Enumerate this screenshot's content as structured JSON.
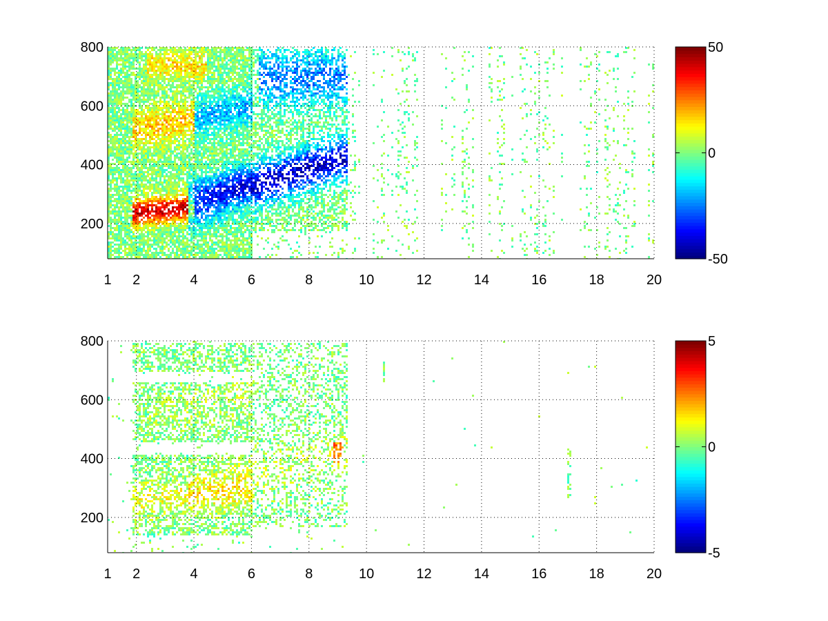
{
  "chart_data": [
    {
      "type": "heatmap",
      "title": "",
      "xlabel": "",
      "ylabel": "",
      "x_ticks": [
        1,
        2,
        4,
        6,
        8,
        10,
        12,
        14,
        16,
        18,
        20
      ],
      "y_ticks": [
        200,
        400,
        600,
        800
      ],
      "xlim": [
        1,
        20
      ],
      "ylim": [
        80,
        800
      ],
      "grid": true,
      "grid_style": "dotted",
      "colormap": "jet",
      "clim": [
        -50,
        50
      ],
      "colorbar_ticks": [
        -50,
        0,
        50
      ],
      "features": [
        {
          "x": [
            1.8,
            5.9
          ],
          "y_start": 225,
          "y_end": 290,
          "value": 40,
          "label": "lower band"
        },
        {
          "x": [
            3.8,
            9.2
          ],
          "y_start": 260,
          "y_end": 420,
          "value": -40,
          "label": "rising band"
        },
        {
          "x": [
            1.8,
            5.9
          ],
          "y_start": 480,
          "y_end": 600,
          "value": 20,
          "label": "middle band"
        },
        {
          "x": [
            2.5,
            4.2
          ],
          "y_start": 710,
          "y_end": 790,
          "value": 15,
          "label": "upper band"
        },
        {
          "x": [
            6.2,
            9.2
          ],
          "y_start": 420,
          "y_end": 740,
          "value": -25,
          "label": "scattered blue"
        }
      ]
    },
    {
      "type": "heatmap",
      "title": "",
      "xlabel": "",
      "ylabel": "",
      "x_ticks": [
        1,
        2,
        4,
        6,
        8,
        10,
        12,
        14,
        16,
        18,
        20
      ],
      "y_ticks": [
        200,
        400,
        600,
        800
      ],
      "xlim": [
        1,
        20
      ],
      "ylim": [
        80,
        800
      ],
      "grid": true,
      "grid_style": "dotted",
      "colormap": "jet",
      "clim": [
        -5,
        5
      ],
      "colorbar_ticks": [
        -5,
        0,
        5
      ],
      "features": [
        {
          "x": [
            1.8,
            5.9
          ],
          "y_start": 225,
          "y_end": 290,
          "value": 1,
          "label": "lower band"
        },
        {
          "x": [
            3.8,
            9.2
          ],
          "y_start": 260,
          "y_end": 420,
          "value": 0.5,
          "label": "rising band"
        },
        {
          "x": [
            2.5,
            5.9
          ],
          "y_start": 480,
          "y_end": 610,
          "value": 0.3,
          "label": "middle band"
        },
        {
          "x": [
            8.8,
            9.1
          ],
          "y_start": 400,
          "y_end": 450,
          "value": 2,
          "label": "hot spot"
        }
      ]
    }
  ]
}
